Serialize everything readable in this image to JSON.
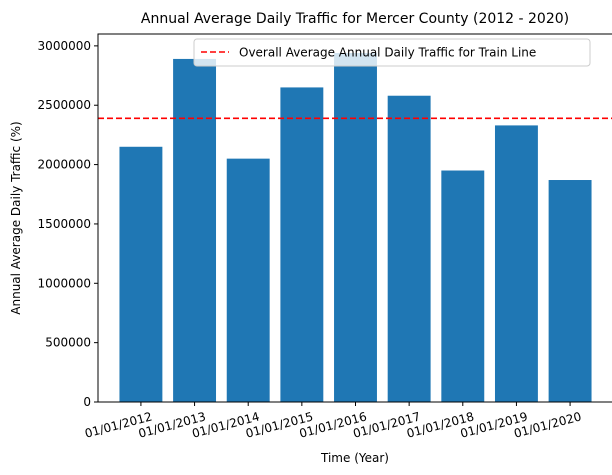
{
  "chart_data": {
    "type": "bar",
    "title": "Annual Average Daily Traffic for Mercer County (2012 - 2020)",
    "xlabel": "Time (Year)",
    "ylabel": "Annual Average Daily Traffic (%)",
    "categories": [
      "01/01/2012",
      "01/01/2013",
      "01/01/2014",
      "01/01/2015",
      "01/01/2016",
      "01/01/2017",
      "01/01/2018",
      "01/01/2019",
      "01/01/2020"
    ],
    "values": [
      2150000,
      2890000,
      2050000,
      2650000,
      2940000,
      2580000,
      1950000,
      2330000,
      1870000
    ],
    "ylim": [
      0,
      3100000
    ],
    "yticks": [
      0,
      500000,
      1000000,
      1500000,
      2000000,
      2500000,
      3000000
    ],
    "ytick_labels": [
      "0",
      "500000",
      "1000000",
      "1500000",
      "2000000",
      "2500000",
      "3000000"
    ],
    "bar_color": "#1f77b4",
    "reference_line": {
      "value": 2390000,
      "label": "Overall Average Annual Daily Traffic for Train Line",
      "color": "#ff0000",
      "style": "dashed"
    },
    "legend_position": "top-right",
    "grid": false
  }
}
